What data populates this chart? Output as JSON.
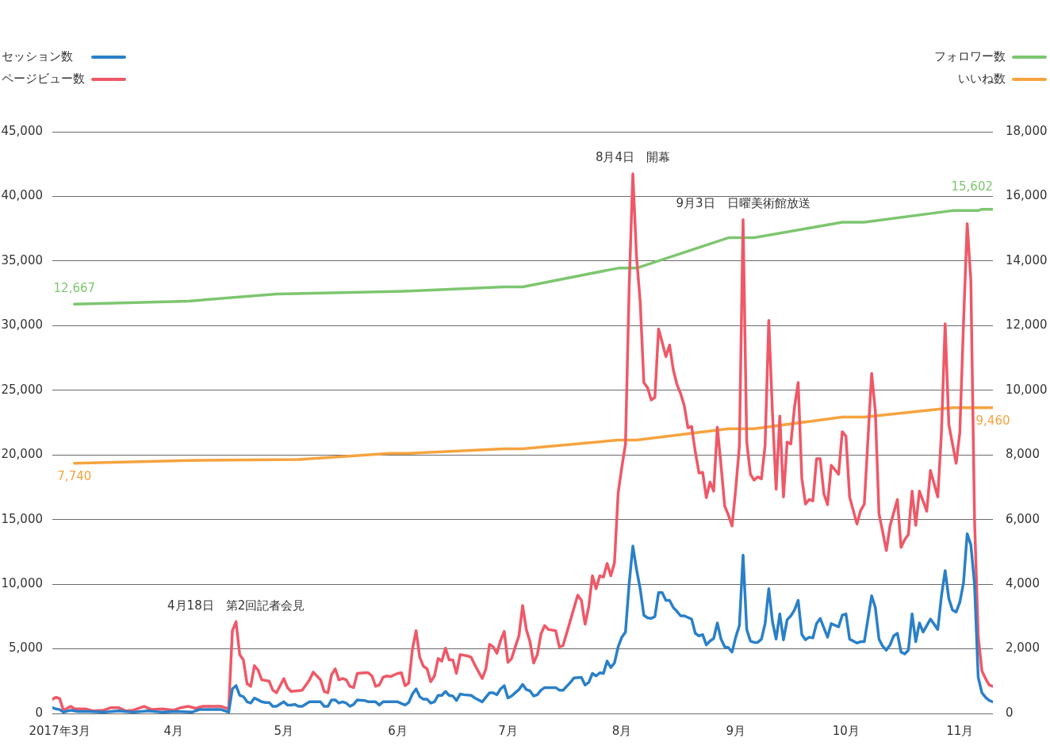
{
  "chart_data": {
    "type": "line",
    "xlim": [
      "2017-02-27",
      "2017-11-10"
    ],
    "xticks": [
      {
        "value": "2017-03-01",
        "label": "2017年3月"
      },
      {
        "value": "2017-04-01",
        "label": "4月"
      },
      {
        "value": "2017-05-01",
        "label": "5月"
      },
      {
        "value": "2017-06-01",
        "label": "6月"
      },
      {
        "value": "2017-07-01",
        "label": "7月"
      },
      {
        "value": "2017-08-01",
        "label": "8月"
      },
      {
        "value": "2017-09-01",
        "label": "9月"
      },
      {
        "value": "2017-10-01",
        "label": "10月"
      },
      {
        "value": "2017-11-01",
        "label": "11月"
      }
    ],
    "ylim": [
      0,
      45000
    ],
    "yticks": [
      0,
      {
        "value": 5000,
        "label": "5,000"
      },
      {
        "value": 10000,
        "label": "10,000"
      },
      {
        "value": 15000,
        "label": "15,000"
      },
      {
        "value": 20000,
        "label": "20,000"
      },
      {
        "value": 25000,
        "label": "25,000"
      },
      {
        "value": 30000,
        "label": "30,000"
      },
      {
        "value": 35000,
        "label": "35,000"
      },
      {
        "value": 40000,
        "label": "40,000"
      },
      {
        "value": 45000,
        "label": "45,000"
      }
    ],
    "y2lim": [
      0,
      18000
    ],
    "y2ticks": [
      0,
      {
        "value": 2000,
        "label": "2,000"
      },
      {
        "value": 4000,
        "label": "4,000"
      },
      {
        "value": 6000,
        "label": "6,000"
      },
      {
        "value": 8000,
        "label": "8,000"
      },
      {
        "value": 10000,
        "label": "10,000"
      },
      {
        "value": 12000,
        "label": "12,000"
      },
      {
        "value": 14000,
        "label": "14,000"
      },
      {
        "value": 16000,
        "label": "16,000"
      },
      {
        "value": 18000,
        "label": "18,000"
      }
    ],
    "grid": "y",
    "legend": "top",
    "marker": "none",
    "annotations": [
      {
        "text": "4月18日　第2回記者会見",
        "x": "2017-04-18",
        "y": 7100
      },
      {
        "text": "8月4日　開幕",
        "x": "2017-08-04",
        "y": 41750
      },
      {
        "text": "9月3日　日曜美術館放送",
        "x": "2017-09-03",
        "y": 38200
      }
    ],
    "series": [
      {
        "name": "セッション数",
        "color": "#2a80c8",
        "x": [
          "2017-02-27",
          "2017-02-28",
          "2017-03-01",
          "2017-03-02",
          "2017-03-04",
          "2017-03-06",
          "2017-03-09",
          "2017-03-13",
          "2017-03-17",
          "2017-03-21",
          "2017-03-25",
          "2017-03-29",
          "2017-04-02",
          "2017-04-06",
          "2017-04-08",
          "2017-04-14",
          "2017-04-16",
          "2017-04-17",
          "2017-04-18",
          "2017-04-19",
          "2017-04-20",
          "2017-04-21",
          "2017-04-22",
          "2017-04-23",
          "2017-04-24",
          "2017-04-25",
          "2017-04-26",
          "2017-04-27",
          "2017-04-28",
          "2017-04-29",
          "2017-05-01",
          "2017-05-02",
          "2017-05-03",
          "2017-05-04",
          "2017-05-05",
          "2017-05-06",
          "2017-05-08",
          "2017-05-09",
          "2017-05-11",
          "2017-05-12",
          "2017-05-13",
          "2017-05-14",
          "2017-05-15",
          "2017-05-16",
          "2017-05-17",
          "2017-05-18",
          "2017-05-19",
          "2017-05-20",
          "2017-05-21",
          "2017-05-23",
          "2017-05-24",
          "2017-05-26",
          "2017-05-27",
          "2017-05-28",
          "2017-06-01",
          "2017-06-03",
          "2017-06-04",
          "2017-06-05",
          "2017-06-06",
          "2017-06-07",
          "2017-06-08",
          "2017-06-09",
          "2017-06-10",
          "2017-06-11",
          "2017-06-12",
          "2017-06-13",
          "2017-06-14",
          "2017-06-15",
          "2017-06-16",
          "2017-06-17",
          "2017-06-18",
          "2017-06-19",
          "2017-06-21",
          "2017-06-22",
          "2017-06-24",
          "2017-06-26",
          "2017-06-27",
          "2017-06-28",
          "2017-06-29",
          "2017-06-30",
          "2017-07-01",
          "2017-07-02",
          "2017-07-03",
          "2017-07-04",
          "2017-07-05",
          "2017-07-06",
          "2017-07-07",
          "2017-07-08",
          "2017-07-09",
          "2017-07-10",
          "2017-07-11",
          "2017-07-14",
          "2017-07-15",
          "2017-07-16",
          "2017-07-18",
          "2017-07-19",
          "2017-07-21",
          "2017-07-22",
          "2017-07-23",
          "2017-07-24",
          "2017-07-25",
          "2017-07-26",
          "2017-07-27",
          "2017-07-28",
          "2017-07-29",
          "2017-07-30",
          "2017-07-31",
          "2017-08-01",
          "2017-08-02",
          "2017-08-03",
          "2017-08-04",
          "2017-08-05",
          "2017-08-06",
          "2017-08-07",
          "2017-08-08",
          "2017-08-09",
          "2017-08-10",
          "2017-08-11",
          "2017-08-12",
          "2017-08-13",
          "2017-08-14",
          "2017-08-15",
          "2017-08-16",
          "2017-08-17",
          "2017-08-18",
          "2017-08-20",
          "2017-08-21",
          "2017-08-22",
          "2017-08-23",
          "2017-08-24",
          "2017-08-25",
          "2017-08-26",
          "2017-08-27",
          "2017-08-28",
          "2017-08-29",
          "2017-08-30",
          "2017-08-31",
          "2017-09-01",
          "2017-09-02",
          "2017-09-03",
          "2017-09-04",
          "2017-09-05",
          "2017-09-06",
          "2017-09-07",
          "2017-09-08",
          "2017-09-09",
          "2017-09-10",
          "2017-09-11",
          "2017-09-12",
          "2017-09-13",
          "2017-09-14",
          "2017-09-15",
          "2017-09-16",
          "2017-09-17",
          "2017-09-18",
          "2017-09-19",
          "2017-09-20",
          "2017-09-21",
          "2017-09-22",
          "2017-09-23",
          "2017-09-24",
          "2017-09-26",
          "2017-09-27",
          "2017-09-29",
          "2017-09-30",
          "2017-10-01",
          "2017-10-02",
          "2017-10-04",
          "2017-10-05",
          "2017-10-06",
          "2017-10-08",
          "2017-10-09",
          "2017-10-10",
          "2017-10-11",
          "2017-10-12",
          "2017-10-13",
          "2017-10-14",
          "2017-10-15",
          "2017-10-16",
          "2017-10-17",
          "2017-10-18",
          "2017-10-19",
          "2017-10-20",
          "2017-10-21",
          "2017-10-22",
          "2017-10-24",
          "2017-10-26",
          "2017-10-27",
          "2017-10-28",
          "2017-10-29",
          "2017-10-30",
          "2017-10-31",
          "2017-11-01",
          "2017-11-02",
          "2017-11-03",
          "2017-11-04",
          "2017-11-05",
          "2017-11-06",
          "2017-11-07",
          "2017-11-08",
          "2017-11-09",
          "2017-11-10"
        ],
        "values": [
          450,
          350,
          300,
          100,
          250,
          150,
          150,
          100,
          200,
          100,
          200,
          100,
          150,
          100,
          300,
          300,
          100,
          1900,
          2150,
          1400,
          1300,
          900,
          800,
          1200,
          1050,
          900,
          850,
          850,
          550,
          550,
          900,
          650,
          650,
          700,
          550,
          550,
          900,
          900,
          900,
          550,
          550,
          1050,
          1050,
          800,
          900,
          800,
          550,
          700,
          1050,
          1000,
          900,
          900,
          650,
          900,
          900,
          650,
          850,
          1500,
          1900,
          1300,
          1100,
          1100,
          800,
          900,
          1400,
          1400,
          1700,
          1400,
          1350,
          1000,
          1500,
          1450,
          1400,
          1200,
          900,
          1600,
          1600,
          1450,
          1900,
          2150,
          1200,
          1350,
          1600,
          1850,
          2250,
          1850,
          1750,
          1350,
          1450,
          1800,
          2000,
          2000,
          1800,
          1800,
          2400,
          2750,
          2800,
          2200,
          2400,
          3100,
          2900,
          3150,
          3100,
          4050,
          3550,
          3900,
          5150,
          5900,
          6300,
          10050,
          12950,
          11150,
          9650,
          7600,
          7400,
          7350,
          7500,
          9350,
          9350,
          8750,
          8750,
          8200,
          7900,
          7550,
          7550,
          7300,
          6200,
          6000,
          6100,
          5300,
          5600,
          5800,
          7000,
          5750,
          5150,
          5100,
          4750,
          5900,
          6800,
          12250,
          6500,
          5600,
          5500,
          5500,
          5750,
          6950,
          9650,
          7100,
          5750,
          7700,
          5700,
          7250,
          7550,
          8000,
          8750,
          6100,
          5700,
          5900,
          5850,
          6950,
          7350,
          5900,
          6950,
          6700,
          7600,
          7700,
          5750,
          5450,
          5550,
          5550,
          9100,
          8200,
          5750,
          5200,
          4900,
          5300,
          6000,
          6200,
          4750,
          4600,
          4900,
          7700,
          5550,
          7000,
          6300,
          7300,
          6500,
          9100,
          11050,
          8900,
          8000,
          7850,
          8600,
          10100,
          13900,
          13050,
          10000,
          2800,
          1600,
          1250,
          1000,
          900
        ]
      },
      {
        "name": "ページビュー数",
        "color": "#ef5867",
        "x": [
          "2017-02-27",
          "2017-02-28",
          "2017-03-01",
          "2017-03-02",
          "2017-03-04",
          "2017-03-05",
          "2017-03-08",
          "2017-03-10",
          "2017-03-13",
          "2017-03-15",
          "2017-03-17",
          "2017-03-19",
          "2017-03-21",
          "2017-03-24",
          "2017-03-26",
          "2017-03-29",
          "2017-04-01",
          "2017-04-03",
          "2017-04-05",
          "2017-04-07",
          "2017-04-09",
          "2017-04-14",
          "2017-04-16",
          "2017-04-17",
          "2017-04-18",
          "2017-04-19",
          "2017-04-20",
          "2017-04-21",
          "2017-04-22",
          "2017-04-23",
          "2017-04-24",
          "2017-04-25",
          "2017-04-27",
          "2017-04-28",
          "2017-04-29",
          "2017-05-01",
          "2017-05-02",
          "2017-05-03",
          "2017-05-06",
          "2017-05-08",
          "2017-05-09",
          "2017-05-10",
          "2017-05-11",
          "2017-05-12",
          "2017-05-13",
          "2017-05-14",
          "2017-05-15",
          "2017-05-16",
          "2017-05-17",
          "2017-05-18",
          "2017-05-19",
          "2017-05-20",
          "2017-05-21",
          "2017-05-23",
          "2017-05-24",
          "2017-05-25",
          "2017-05-26",
          "2017-05-27",
          "2017-05-28",
          "2017-05-29",
          "2017-05-30",
          "2017-06-01",
          "2017-06-02",
          "2017-06-03",
          "2017-06-04",
          "2017-06-05",
          "2017-06-06",
          "2017-06-07",
          "2017-06-08",
          "2017-06-09",
          "2017-06-10",
          "2017-06-11",
          "2017-06-12",
          "2017-06-13",
          "2017-06-14",
          "2017-06-15",
          "2017-06-16",
          "2017-06-17",
          "2017-06-18",
          "2017-06-20",
          "2017-06-21",
          "2017-06-22",
          "2017-06-24",
          "2017-06-25",
          "2017-06-26",
          "2017-06-27",
          "2017-06-28",
          "2017-06-29",
          "2017-06-30",
          "2017-07-01",
          "2017-07-02",
          "2017-07-03",
          "2017-07-04",
          "2017-07-05",
          "2017-07-06",
          "2017-07-07",
          "2017-07-08",
          "2017-07-09",
          "2017-07-10",
          "2017-07-11",
          "2017-07-12",
          "2017-07-14",
          "2017-07-15",
          "2017-07-16",
          "2017-07-18",
          "2017-07-20",
          "2017-07-21",
          "2017-07-22",
          "2017-07-23",
          "2017-07-24",
          "2017-07-25",
          "2017-07-26",
          "2017-07-27",
          "2017-07-28",
          "2017-07-29",
          "2017-07-30",
          "2017-07-31",
          "2017-08-01",
          "2017-08-02",
          "2017-08-03",
          "2017-08-04",
          "2017-08-05",
          "2017-08-06",
          "2017-08-07",
          "2017-08-08",
          "2017-08-09",
          "2017-08-10",
          "2017-08-11",
          "2017-08-12",
          "2017-08-13",
          "2017-08-14",
          "2017-08-15",
          "2017-08-16",
          "2017-08-17",
          "2017-08-18",
          "2017-08-19",
          "2017-08-20",
          "2017-08-21",
          "2017-08-22",
          "2017-08-23",
          "2017-08-24",
          "2017-08-25",
          "2017-08-26",
          "2017-08-27",
          "2017-08-28",
          "2017-08-29",
          "2017-08-30",
          "2017-08-31",
          "2017-09-01",
          "2017-09-02",
          "2017-09-03",
          "2017-09-04",
          "2017-09-05",
          "2017-09-06",
          "2017-09-07",
          "2017-09-08",
          "2017-09-09",
          "2017-09-10",
          "2017-09-11",
          "2017-09-12",
          "2017-09-13",
          "2017-09-14",
          "2017-09-15",
          "2017-09-16",
          "2017-09-17",
          "2017-09-18",
          "2017-09-19",
          "2017-09-20",
          "2017-09-21",
          "2017-09-22",
          "2017-09-23",
          "2017-09-24",
          "2017-09-25",
          "2017-09-26",
          "2017-09-27",
          "2017-09-29",
          "2017-09-30",
          "2017-10-01",
          "2017-10-02",
          "2017-10-04",
          "2017-10-05",
          "2017-10-06",
          "2017-10-08",
          "2017-10-09",
          "2017-10-10",
          "2017-10-11",
          "2017-10-12",
          "2017-10-13",
          "2017-10-15",
          "2017-10-16",
          "2017-10-17",
          "2017-10-18",
          "2017-10-19",
          "2017-10-20",
          "2017-10-21",
          "2017-10-23",
          "2017-10-24",
          "2017-10-26",
          "2017-10-27",
          "2017-10-28",
          "2017-10-29",
          "2017-10-31",
          "2017-11-01",
          "2017-11-02",
          "2017-11-03",
          "2017-11-04",
          "2017-11-05",
          "2017-11-06",
          "2017-11-07",
          "2017-11-08",
          "2017-11-09",
          "2017-11-10"
        ],
        "values": [
          1100,
          1250,
          1150,
          250,
          550,
          350,
          350,
          200,
          250,
          450,
          450,
          200,
          250,
          550,
          300,
          350,
          250,
          450,
          550,
          400,
          550,
          550,
          350,
          6400,
          7100,
          4550,
          4150,
          2300,
          2100,
          3700,
          3350,
          2600,
          2500,
          1800,
          1600,
          2700,
          2000,
          1700,
          1800,
          2600,
          3200,
          2900,
          2600,
          1700,
          1600,
          3000,
          3450,
          2600,
          2700,
          2600,
          2100,
          2000,
          3100,
          3150,
          3150,
          2900,
          2100,
          2200,
          2800,
          2900,
          2850,
          3100,
          3150,
          2150,
          2350,
          4950,
          6400,
          4350,
          3650,
          3450,
          2450,
          2900,
          4250,
          4050,
          5050,
          4150,
          4150,
          3100,
          4550,
          4450,
          4350,
          3750,
          2700,
          3450,
          5350,
          5150,
          4650,
          5650,
          6350,
          3950,
          4250,
          5150,
          6000,
          8350,
          6500,
          5550,
          3900,
          4550,
          6150,
          6800,
          6500,
          6400,
          5150,
          5250,
          7200,
          9150,
          8750,
          6900,
          8250,
          10650,
          9650,
          10650,
          10550,
          11600,
          10650,
          11650,
          17050,
          19050,
          20850,
          33000,
          41750,
          35350,
          31850,
          25600,
          25200,
          24250,
          24450,
          29750,
          28700,
          27600,
          28500,
          26600,
          25450,
          24750,
          23800,
          22100,
          22200,
          20250,
          18600,
          18650,
          16700,
          17900,
          17200,
          22150,
          19200,
          16050,
          15350,
          14500,
          17350,
          20700,
          38200,
          21000,
          18500,
          18050,
          18300,
          18150,
          20750,
          30400,
          23250,
          17350,
          23000,
          16750,
          21000,
          20850,
          23700,
          25600,
          18150,
          16200,
          16550,
          16450,
          19700,
          19700,
          17000,
          16150,
          19200,
          18500,
          21800,
          21450,
          16750,
          14650,
          15700,
          16200,
          26300,
          23400,
          15450,
          14050,
          12600,
          14500,
          16550,
          12850,
          13450,
          13850,
          17200,
          14550,
          17200,
          15650,
          18800,
          16750,
          21750,
          30150,
          22350,
          19350,
          21750,
          30200,
          37900,
          33500,
          15000,
          6000,
          3300,
          2700,
          2200,
          2100
        ]
      },
      {
        "name": "フォロワー数",
        "color": "#7dc66f",
        "axis": "y2",
        "x": [
          "2017-03-05",
          "2017-04-05",
          "2017-04-29",
          "2017-06-04",
          "2017-06-30",
          "2017-07-05",
          "2017-07-31",
          "2017-08-05",
          "2017-08-30",
          "2017-09-06",
          "2017-09-30",
          "2017-10-06",
          "2017-10-30",
          "2017-11-06",
          "2017-11-07",
          "2017-11-10"
        ],
        "values": [
          12667,
          12760,
          12980,
          13070,
          13200,
          13200,
          13780,
          13780,
          14720,
          14720,
          15200,
          15200,
          15560,
          15560,
          15602,
          15602
        ],
        "value_labels": [
          "12,667",
          null,
          null,
          null,
          null,
          null,
          null,
          null,
          null,
          null,
          null,
          null,
          null,
          null,
          null,
          "15,602"
        ]
      },
      {
        "name": "いいね数",
        "color": "#f6a33f",
        "axis": "y2",
        "x": [
          "2017-03-05",
          "2017-04-05",
          "2017-05-05",
          "2017-05-30",
          "2017-06-04",
          "2017-06-30",
          "2017-07-05",
          "2017-07-31",
          "2017-08-05",
          "2017-08-30",
          "2017-09-06",
          "2017-09-30",
          "2017-10-06",
          "2017-10-30",
          "2017-11-10"
        ],
        "values": [
          7740,
          7830,
          7860,
          8050,
          8050,
          8190,
          8190,
          8460,
          8460,
          8810,
          8810,
          9170,
          9170,
          9460,
          9460
        ],
        "value_labels": [
          "7,740",
          null,
          null,
          null,
          null,
          null,
          null,
          null,
          null,
          null,
          null,
          null,
          null,
          null,
          "9,460"
        ]
      }
    ]
  }
}
